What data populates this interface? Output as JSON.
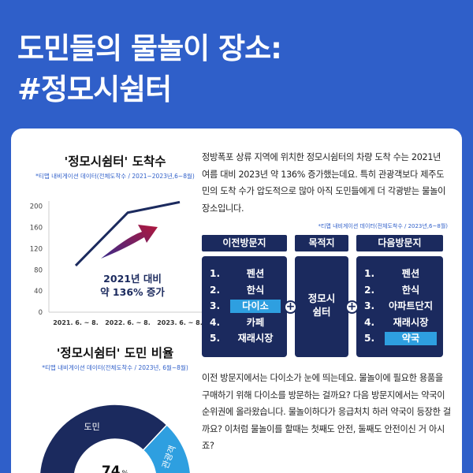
{
  "hero": {
    "line1": "도민들의 물놀이 장소:",
    "line2": "#정모시쉼터"
  },
  "left": {
    "arrivals_title": "'정모시쉼터' 도착수",
    "arrivals_note": "*티맵 내비게이션 데이터(전체도착수 / 2021~2023년,6~8월)",
    "ratio_title": "'정모시쉼터' 도민 비율",
    "ratio_note": "*티맵 내비게이션 데이터(전체도착수 / 2023년, 6월~8월)"
  },
  "chart_data": [
    {
      "type": "line",
      "categories": [
        "2021. 6. ~ 8.",
        "2022. 6. ~ 8.",
        "2023. 6. ~ 8."
      ],
      "values": [
        88,
        188,
        208
      ],
      "yticks": [
        0,
        40,
        80,
        120,
        160,
        200
      ],
      "ylim": [
        0,
        210
      ],
      "annotation_line1": "2021년 대비",
      "annotation_line2": "약 136% 증가",
      "colors": {
        "line": "#1b2a5e",
        "arrow_start": "#3a2a8a",
        "arrow_end": "#b0173c"
      }
    },
    {
      "type": "pie",
      "slices": [
        {
          "label": "도민",
          "value": 74,
          "color": "#1b2a5e"
        },
        {
          "label": "관광객",
          "value": 26,
          "color": "#2e9fe0"
        }
      ],
      "center_value": "74",
      "center_unit": "%"
    }
  ],
  "right": {
    "para1": "정방폭포 상류 지역에 위치한 정모시쉼터의 차량 도착 수는 2021년 여름 대비 2023년 약 136% 증가했는데요. 특히 관광객보다 제주도민의 도착 수가 압도적으로 많아 아직 도민들에게 더 각광받는 물놀이 장소입니다.",
    "flow_note": "*티맵 내비게이션 데이터(전체도착수 / 2023년,6~8월)",
    "prev": {
      "header": "이전방문지",
      "items": [
        {
          "num": "1.",
          "text": "펜션"
        },
        {
          "num": "2.",
          "text": "한식"
        },
        {
          "num": "3.",
          "text": "다이소"
        },
        {
          "num": "4.",
          "text": "카페"
        },
        {
          "num": "5.",
          "text": "재래시장"
        }
      ]
    },
    "dest": {
      "header": "목적지",
      "line1": "정모시",
      "line2": "쉼터"
    },
    "next": {
      "header": "다음방문지",
      "items": [
        {
          "num": "1.",
          "text": "펜션"
        },
        {
          "num": "2.",
          "text": "한식"
        },
        {
          "num": "3.",
          "text": "아파트단지"
        },
        {
          "num": "4.",
          "text": "재래시장"
        },
        {
          "num": "5.",
          "text": "약국"
        }
      ]
    },
    "para2": "이전 방문지에서는 다이소가 눈에 띄는데요. 물놀이에 필요한 용품을 구매하기 위해 다이소를 방문하는 걸까요? 다음 방문지에서는 약국이 순위권에 올라왔습니다. 물놀이하다가 응급처치 하러 약국이 등장한 걸까요? 이처럼 물놀이를 할때는 첫째도 안전, 둘째도 안전이신 거 아시죠?"
  },
  "colors": {
    "background": "#2f5fc9",
    "navy": "#1b2a5e",
    "accent": "#2e9fe0"
  }
}
